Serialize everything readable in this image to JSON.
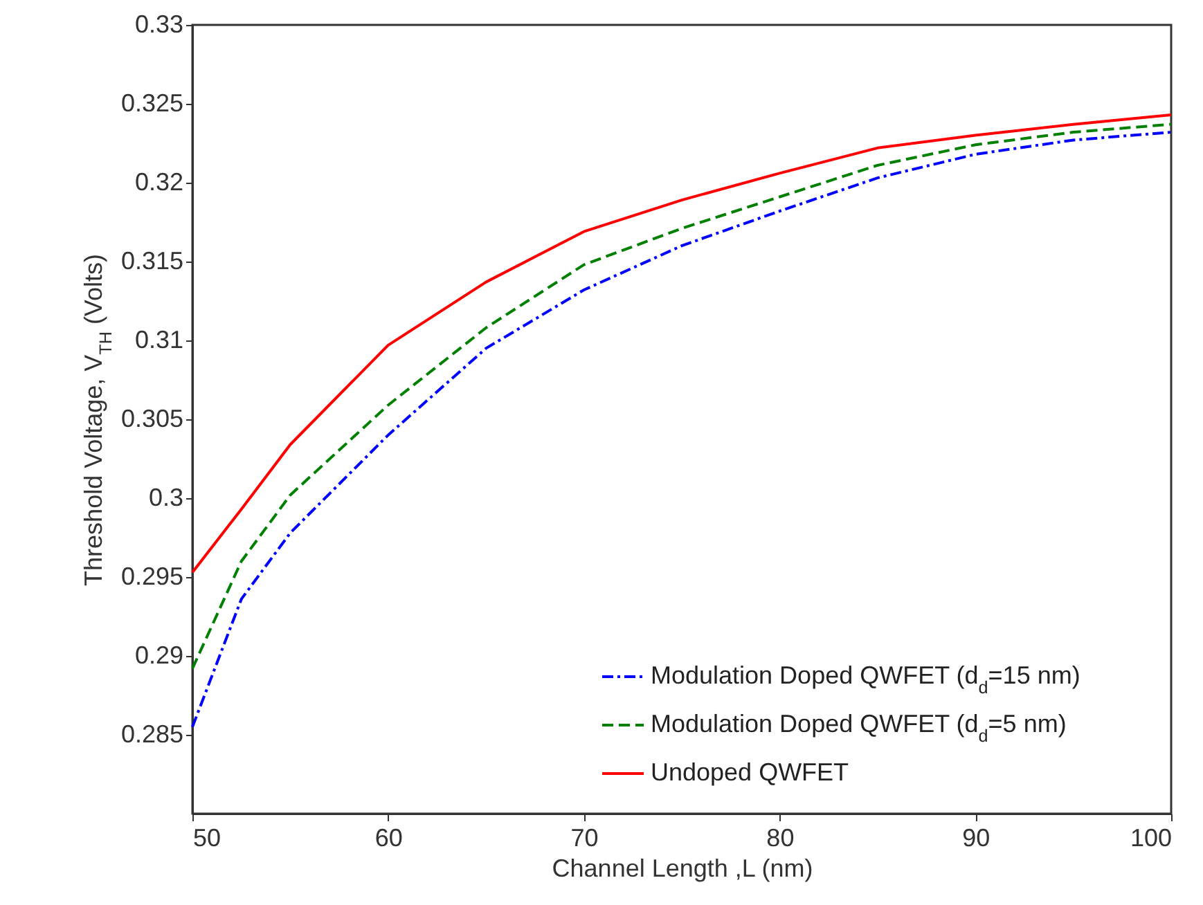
{
  "chart_data": {
    "type": "line",
    "xlabel": "Channel Length ,L (nm)",
    "ylabel": "Threshold Voltage, V$_{TH}$ (Volts)",
    "x": [
      50,
      52.5,
      55,
      60,
      65,
      70,
      75,
      80,
      85,
      90,
      95,
      100
    ],
    "series": [
      {
        "name": "Modulation Doped QWFET (d$_{d}$=15 nm)",
        "color": "#0000ff",
        "line_style": "dashdot",
        "values": [
          0.2855,
          0.2936,
          0.2978,
          0.304,
          0.3095,
          0.3132,
          0.316,
          0.3182,
          0.3203,
          0.3218,
          0.3227,
          0.3232
        ]
      },
      {
        "name": "Modulation Doped QWFET (d$_{d}$=5 nm)",
        "color": "#008000",
        "line_style": "dashed",
        "values": [
          0.2892,
          0.296,
          0.3002,
          0.3059,
          0.3108,
          0.3148,
          0.3171,
          0.3191,
          0.3211,
          0.3224,
          0.3232,
          0.3237
        ]
      },
      {
        "name": "Undoped  QWFET",
        "color": "#ff0000",
        "line_style": "solid",
        "values": [
          0.2953,
          0.2993,
          0.3034,
          0.3097,
          0.3137,
          0.3169,
          0.3189,
          0.3206,
          0.3222,
          0.323,
          0.3237,
          0.3243
        ]
      }
    ],
    "xlim": [
      50,
      100
    ],
    "xticks": [
      50,
      60,
      70,
      80,
      90,
      100
    ],
    "ylim": [
      0.28,
      0.33
    ],
    "yticks": [
      0.285,
      0.29,
      0.295,
      0.3,
      0.305,
      0.31,
      0.315,
      0.32,
      0.325,
      0.33
    ],
    "grid": false,
    "legend": "bottom right",
    "marker": "none"
  }
}
